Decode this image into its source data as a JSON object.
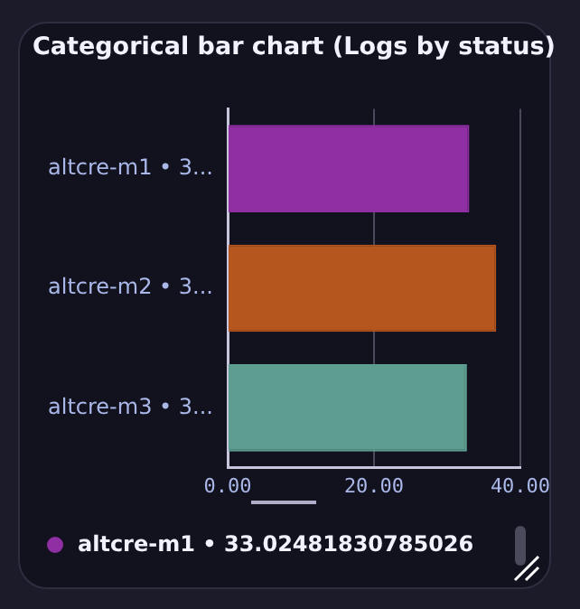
{
  "chart_data": {
    "type": "bar",
    "orientation": "horizontal",
    "title": "Categorical bar chart (Logs by status)",
    "categories": [
      "altcre-m1 • 3...",
      "altcre-m2 • 3...",
      "altcre-m3 • 3..."
    ],
    "values": [
      33.02481830785026,
      36.7,
      32.7
    ],
    "colors": [
      "#8f2fa3",
      "#b5561f",
      "#5e9e91"
    ],
    "xlim": [
      0,
      40
    ],
    "xticks": [
      {
        "value": 0,
        "label": "0.00"
      },
      {
        "value": 20,
        "label": "20.00"
      },
      {
        "value": 40,
        "label": "40.00"
      }
    ],
    "grid": "x",
    "annotations": [
      "altcre-m1 • 33.02481830785026"
    ]
  }
}
